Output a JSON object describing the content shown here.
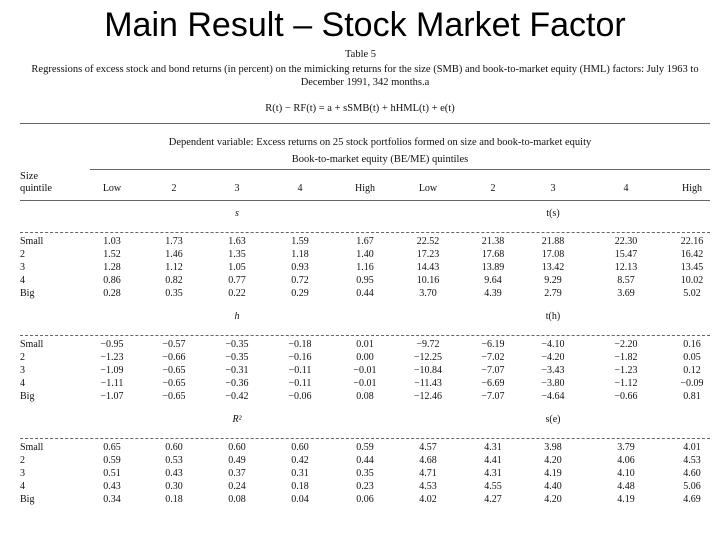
{
  "title": "Main Result – Stock Market Factor",
  "table": {
    "label": "Table 5",
    "caption": "Regressions of excess stock and bond returns (in percent) on the mimicking returns for the size (SMB) and book-to-market equity (HML) factors: July 1963 to December 1991, 342 months.a",
    "equation": "R(t) − RF(t) = a + sSMB(t) + hHML(t) + e(t)",
    "dependent": "Dependent variable: Excess returns on 25 stock portfolios formed on size and book-to-market equity",
    "quintiles_label": "Book-to-market equity (BE/ME) quintiles",
    "size_label": [
      "Size",
      "quintile"
    ],
    "columns": [
      "Low",
      "2",
      "3",
      "4",
      "High",
      "Low",
      "2",
      "3",
      "4",
      "High"
    ],
    "panels": [
      {
        "left_label": "s",
        "right_label": "t(s)",
        "rows": [
          {
            "label": "Small",
            "values": [
              "1.03",
              "1.73",
              "1.63",
              "1.59",
              "1.67",
              "22.52",
              "21.38",
              "21.88",
              "22.30",
              "22.16"
            ]
          },
          {
            "label": "2",
            "values": [
              "1.52",
              "1.46",
              "1.35",
              "1.18",
              "1.40",
              "17.23",
              "17.68",
              "17.08",
              "15.47",
              "16.42"
            ]
          },
          {
            "label": "3",
            "values": [
              "1.28",
              "1.12",
              "1.05",
              "0.93",
              "1.16",
              "14.43",
              "13.89",
              "13.42",
              "12.13",
              "13.45"
            ]
          },
          {
            "label": "4",
            "values": [
              "0.86",
              "0.82",
              "0.77",
              "0.72",
              "0.95",
              "10.16",
              "9.64",
              "9.29",
              "8.57",
              "10.02"
            ]
          },
          {
            "label": "Big",
            "values": [
              "0.28",
              "0.35",
              "0.22",
              "0.29",
              "0.44",
              "3.70",
              "4.39",
              "2.79",
              "3.69",
              "5.02"
            ]
          }
        ]
      },
      {
        "left_label": "h",
        "right_label": "t(h)",
        "rows": [
          {
            "label": "Small",
            "values": [
              "−0.95",
              "−0.57",
              "−0.35",
              "−0.18",
              "0.01",
              "−9.72",
              "−6.19",
              "−4.10",
              "−2.20",
              "0.16"
            ]
          },
          {
            "label": "2",
            "values": [
              "−1.23",
              "−0.66",
              "−0.35",
              "−0.16",
              "0.00",
              "−12.25",
              "−7.02",
              "−4.20",
              "−1.82",
              "0.05"
            ]
          },
          {
            "label": "3",
            "values": [
              "−1.09",
              "−0.65",
              "−0.31",
              "−0.11",
              "−0.01",
              "−10.84",
              "−7.07",
              "−3.43",
              "−1.23",
              "0.12"
            ]
          },
          {
            "label": "4",
            "values": [
              "−1.11",
              "−0.65",
              "−0.36",
              "−0.11",
              "−0.01",
              "−11.43",
              "−6.69",
              "−3.80",
              "−1.12",
              "−0.09"
            ]
          },
          {
            "label": "Big",
            "values": [
              "−1.07",
              "−0.65",
              "−0.42",
              "−0.06",
              "0.08",
              "−12.46",
              "−7.07",
              "−4.64",
              "−0.66",
              "0.81"
            ]
          }
        ]
      },
      {
        "left_label": "R²",
        "right_label": "s(e)",
        "rows": [
          {
            "label": "Small",
            "values": [
              "0.65",
              "0.60",
              "0.60",
              "0.60",
              "0.59",
              "4.57",
              "4.31",
              "3.98",
              "3.79",
              "4.01"
            ]
          },
          {
            "label": "2",
            "values": [
              "0.59",
              "0.53",
              "0.49",
              "0.42",
              "0.44",
              "4.68",
              "4.41",
              "4.20",
              "4.06",
              "4.53"
            ]
          },
          {
            "label": "3",
            "values": [
              "0.51",
              "0.43",
              "0.37",
              "0.31",
              "0.35",
              "4.71",
              "4.31",
              "4.19",
              "4.10",
              "4.60"
            ]
          },
          {
            "label": "4",
            "values": [
              "0.43",
              "0.30",
              "0.24",
              "0.18",
              "0.23",
              "4.53",
              "4.55",
              "4.40",
              "4.48",
              "5.06"
            ]
          },
          {
            "label": "Big",
            "values": [
              "0.34",
              "0.18",
              "0.08",
              "0.04",
              "0.06",
              "4.02",
              "4.27",
              "4.20",
              "4.19",
              "4.69"
            ]
          }
        ]
      }
    ]
  }
}
